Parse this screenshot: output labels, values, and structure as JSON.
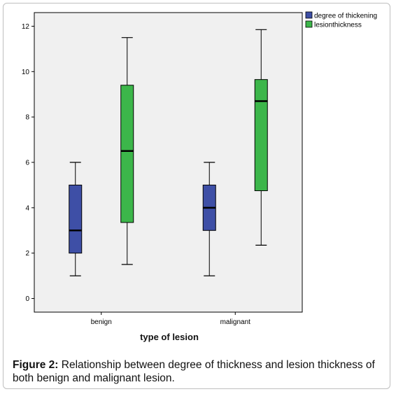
{
  "chart_data": {
    "type": "boxplot",
    "title": "",
    "xlabel": "type of lesion",
    "ylabel": "",
    "ylim": [
      -0.6,
      12.6
    ],
    "yticks": [
      0,
      2,
      4,
      6,
      8,
      10,
      12
    ],
    "categories": [
      "benign",
      "malignant"
    ],
    "series": [
      {
        "name": "degree of thickening",
        "color": "#3e4fa6",
        "boxes": [
          {
            "whisker_low": 1,
            "q1": 2,
            "median": 3,
            "q3": 5,
            "whisker_high": 6
          },
          {
            "whisker_low": 1,
            "q1": 3,
            "median": 4,
            "q3": 5,
            "whisker_high": 6
          }
        ]
      },
      {
        "name": "lesionthickness",
        "color": "#3cb64a",
        "boxes": [
          {
            "whisker_low": 1.5,
            "q1": 3.35,
            "median": 6.5,
            "q3": 9.4,
            "whisker_high": 11.5
          },
          {
            "whisker_low": 2.35,
            "q1": 4.75,
            "median": 8.7,
            "q3": 9.65,
            "whisker_high": 11.85
          }
        ]
      }
    ],
    "grid": false,
    "legend_position": "top-right"
  },
  "caption": {
    "label": "Figure 2:",
    "text": " Relationship between degree of thickness and lesion thickness of both benign and malignant lesion."
  }
}
